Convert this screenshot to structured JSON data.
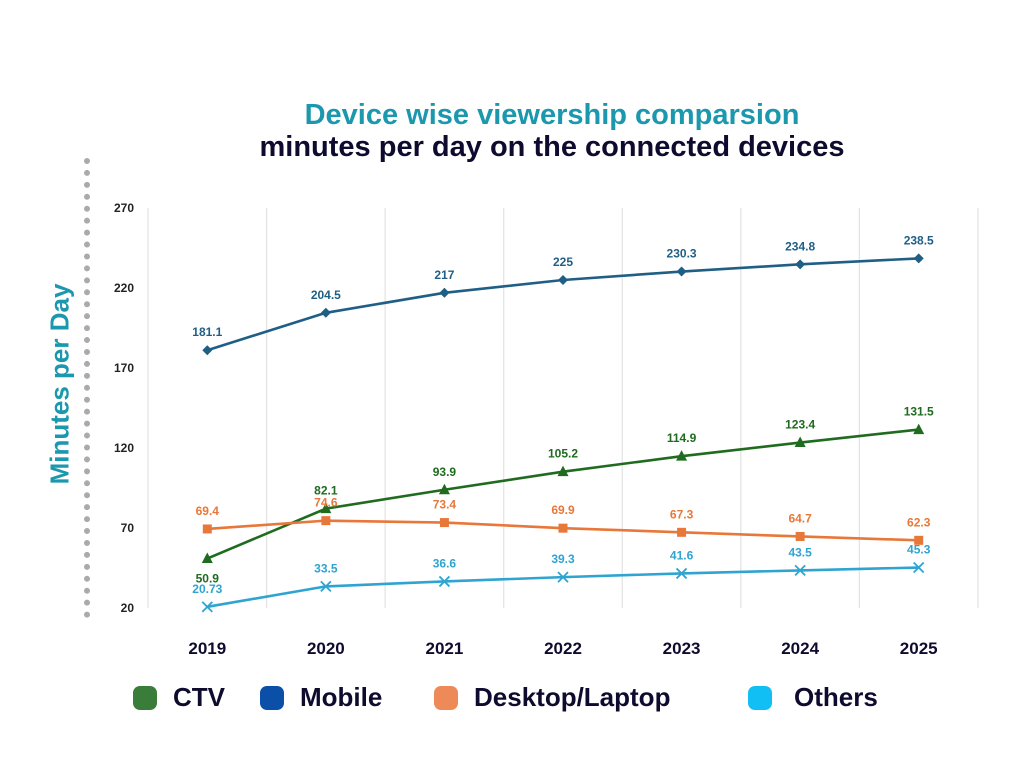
{
  "chart_data": {
    "type": "line",
    "title": "Device wise viewership comparsion",
    "subtitle": "minutes per day on the connected devices",
    "xlabel": "",
    "ylabel": "Minutes per Day",
    "ylim": [
      20,
      270
    ],
    "yticks": [
      "270",
      "220",
      "170",
      "120",
      "70",
      "20"
    ],
    "ytick_values": [
      270,
      220,
      170,
      120,
      70,
      20
    ],
    "categories": [
      "2019",
      "2020",
      "2021",
      "2022",
      "2023",
      "2024",
      "2025"
    ],
    "grid": "vertical",
    "legend_position": "bottom",
    "series": [
      {
        "name": "Mobile",
        "color": "#1f5f85",
        "marker": "diamond",
        "values": [
          181.1,
          204.5,
          217,
          225,
          230.3,
          234.8,
          238.5
        ],
        "labels": [
          "181.1",
          "204.5",
          "217",
          "225",
          "230.3",
          "234.8",
          "238.5"
        ]
      },
      {
        "name": "CTV",
        "color": "#1f6b1f",
        "marker": "triangle",
        "values": [
          50.9,
          82.1,
          93.9,
          105.2,
          114.9,
          123.4,
          131.5
        ],
        "labels": [
          "50.9",
          "82.1",
          "93.9",
          "105.2",
          "114.9",
          "123.4",
          "131.5"
        ]
      },
      {
        "name": "Desktop/Laptop",
        "color": "#e8773a",
        "marker": "square",
        "values": [
          69.4,
          74.6,
          73.4,
          69.9,
          67.3,
          64.7,
          62.3
        ],
        "labels": [
          "69.4",
          "74.6",
          "73.4",
          "69.9",
          "67.3",
          "64.7",
          "62.3"
        ]
      },
      {
        "name": "Others",
        "color": "#2fa4d1",
        "marker": "x",
        "values": [
          20.73,
          33.5,
          36.6,
          39.3,
          41.6,
          43.5,
          45.3
        ],
        "labels": [
          "20.73",
          "33.5",
          "36.6",
          "39.3",
          "41.6",
          "43.5",
          "45.3"
        ]
      }
    ]
  },
  "legend": [
    {
      "label": "CTV",
      "color": "#3a7d3a"
    },
    {
      "label": "Mobile",
      "color": "#0b4fa8"
    },
    {
      "label": "Desktop/Laptop",
      "color": "#ee8a58"
    },
    {
      "label": "Others",
      "color": "#12bff5"
    }
  ]
}
